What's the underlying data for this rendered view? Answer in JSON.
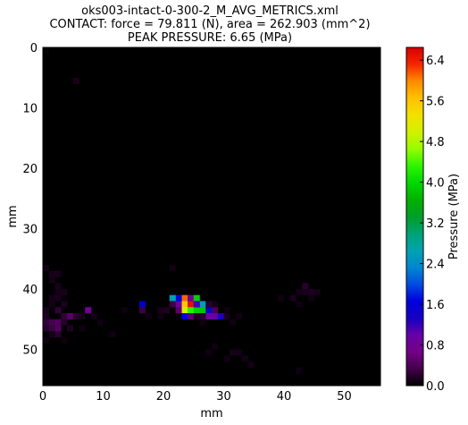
{
  "chart_data": {
    "type": "heatmap",
    "title_lines": [
      "oks003-intact-0-300-2_M_AVG_METRICS.xml",
      "CONTACT: force = 79.811 (N), area = 262.903 (mm^2)",
      "PEAK PRESSURE: 6.65 (MPa)"
    ],
    "xlabel": "mm",
    "ylabel": "mm",
    "colorbar_label": "Pressure (MPa)",
    "xlim": [
      0,
      56
    ],
    "ylim": [
      56,
      0
    ],
    "xticks": [
      "0",
      "10",
      "20",
      "30",
      "40",
      "50"
    ],
    "yticks": [
      "0",
      "10",
      "20",
      "30",
      "40",
      "50"
    ],
    "colorbar_ticks": [
      "0.0",
      "0.8",
      "1.6",
      "2.4",
      "3.2",
      "4.0",
      "4.8",
      "5.6",
      "6.4"
    ],
    "colorbar_range": [
      0,
      6.65
    ],
    "colormap": "nipy_spectral",
    "background_color": "#000000",
    "cells": [
      {
        "x": 23,
        "y": 41,
        "v": 6.1
      },
      {
        "x": 23,
        "y": 42,
        "v": 5.6
      },
      {
        "x": 23,
        "y": 43,
        "v": 5.0
      },
      {
        "x": 24,
        "y": 42,
        "v": 6.5
      },
      {
        "x": 24,
        "y": 41,
        "v": 0.8
      },
      {
        "x": 24,
        "y": 43,
        "v": 4.3
      },
      {
        "x": 25,
        "y": 41,
        "v": 3.9
      },
      {
        "x": 25,
        "y": 43,
        "v": 3.9
      },
      {
        "x": 26,
        "y": 42,
        "v": 2.6
      },
      {
        "x": 26,
        "y": 43,
        "v": 3.8
      },
      {
        "x": 22,
        "y": 42,
        "v": 0.9
      },
      {
        "x": 22,
        "y": 41,
        "v": 1.6
      },
      {
        "x": 21,
        "y": 41,
        "v": 2.6
      },
      {
        "x": 22,
        "y": 43,
        "v": 0.5
      },
      {
        "x": 23,
        "y": 44,
        "v": 1.6
      },
      {
        "x": 24,
        "y": 44,
        "v": 0.5
      },
      {
        "x": 25,
        "y": 42,
        "v": 1.2
      },
      {
        "x": 27,
        "y": 43,
        "v": 1.5
      },
      {
        "x": 27,
        "y": 44,
        "v": 0.9
      },
      {
        "x": 28,
        "y": 44,
        "v": 1.0
      },
      {
        "x": 29,
        "y": 44,
        "v": 1.3
      },
      {
        "x": 28,
        "y": 43,
        "v": 0.4
      },
      {
        "x": 26,
        "y": 44,
        "v": 0.2
      },
      {
        "x": 16,
        "y": 42,
        "v": 1.4
      },
      {
        "x": 16,
        "y": 43,
        "v": 0.3
      },
      {
        "x": 7,
        "y": 43,
        "v": 0.8
      },
      {
        "x": 4,
        "y": 44,
        "v": 0.5
      },
      {
        "x": 3,
        "y": 44,
        "v": 0.25
      },
      {
        "x": 2,
        "y": 43,
        "v": 0.25
      },
      {
        "x": 1,
        "y": 45,
        "v": 0.35
      },
      {
        "x": 2,
        "y": 45,
        "v": 0.4
      },
      {
        "x": 2,
        "y": 46,
        "v": 0.45
      },
      {
        "x": 1,
        "y": 46,
        "v": 0.3
      },
      {
        "x": 0,
        "y": 45,
        "v": 0.25
      },
      {
        "x": 3,
        "y": 45,
        "v": 0.2
      },
      {
        "x": 2,
        "y": 47,
        "v": 0.2
      },
      {
        "x": 0,
        "y": 46,
        "v": 0.2
      },
      {
        "x": 1,
        "y": 37,
        "v": 0.12
      },
      {
        "x": 2,
        "y": 37,
        "v": 0.12
      },
      {
        "x": 1,
        "y": 38,
        "v": 0.1
      },
      {
        "x": 2,
        "y": 39,
        "v": 0.12
      },
      {
        "x": 2,
        "y": 40,
        "v": 0.1
      },
      {
        "x": 3,
        "y": 40,
        "v": 0.12
      },
      {
        "x": 1,
        "y": 41,
        "v": 0.1
      },
      {
        "x": 2,
        "y": 41,
        "v": 0.12
      },
      {
        "x": 3,
        "y": 42,
        "v": 0.15
      },
      {
        "x": 1,
        "y": 42,
        "v": 0.1
      },
      {
        "x": 0,
        "y": 43,
        "v": 0.12
      },
      {
        "x": 0,
        "y": 36,
        "v": 0.1
      },
      {
        "x": 4,
        "y": 46,
        "v": 0.15
      },
      {
        "x": 5,
        "y": 44,
        "v": 0.2
      },
      {
        "x": 6,
        "y": 44,
        "v": 0.12
      },
      {
        "x": 1,
        "y": 47,
        "v": 0.12
      },
      {
        "x": 0,
        "y": 44,
        "v": 0.15
      },
      {
        "x": 43,
        "y": 39,
        "v": 0.2
      },
      {
        "x": 44,
        "y": 40,
        "v": 0.15
      },
      {
        "x": 43,
        "y": 40,
        "v": 0.12
      },
      {
        "x": 42,
        "y": 40,
        "v": 0.1
      },
      {
        "x": 41,
        "y": 41,
        "v": 0.12
      },
      {
        "x": 39,
        "y": 41,
        "v": 0.08
      },
      {
        "x": 44,
        "y": 41,
        "v": 0.08
      },
      {
        "x": 42,
        "y": 42,
        "v": 0.08
      },
      {
        "x": 45,
        "y": 40,
        "v": 0.1
      },
      {
        "x": 20,
        "y": 43,
        "v": 0.15
      },
      {
        "x": 19,
        "y": 43,
        "v": 0.12
      },
      {
        "x": 19,
        "y": 44,
        "v": 0.08
      },
      {
        "x": 17,
        "y": 44,
        "v": 0.08
      },
      {
        "x": 30,
        "y": 44,
        "v": 0.12
      },
      {
        "x": 31,
        "y": 45,
        "v": 0.08
      },
      {
        "x": 32,
        "y": 44,
        "v": 0.08
      },
      {
        "x": 30,
        "y": 43,
        "v": 0.08
      },
      {
        "x": 28,
        "y": 42,
        "v": 0.1
      },
      {
        "x": 27,
        "y": 42,
        "v": 0.2
      },
      {
        "x": 26,
        "y": 45,
        "v": 0.08
      },
      {
        "x": 21,
        "y": 42,
        "v": 0.3
      },
      {
        "x": 31,
        "y": 50,
        "v": 0.12
      },
      {
        "x": 32,
        "y": 50,
        "v": 0.1
      },
      {
        "x": 33,
        "y": 51,
        "v": 0.1
      },
      {
        "x": 34,
        "y": 52,
        "v": 0.1
      },
      {
        "x": 30,
        "y": 51,
        "v": 0.08
      },
      {
        "x": 27,
        "y": 50,
        "v": 0.08
      },
      {
        "x": 28,
        "y": 49,
        "v": 0.08
      },
      {
        "x": 21,
        "y": 36,
        "v": 0.1
      },
      {
        "x": 42,
        "y": 53,
        "v": 0.08
      },
      {
        "x": 5,
        "y": 5,
        "v": 0.12
      },
      {
        "x": 0,
        "y": 0,
        "v": 0.05
      },
      {
        "x": 11,
        "y": 47,
        "v": 0.08
      },
      {
        "x": 9,
        "y": 45,
        "v": 0.08
      },
      {
        "x": 8,
        "y": 44,
        "v": 0.1
      },
      {
        "x": 13,
        "y": 43,
        "v": 0.06
      },
      {
        "x": 6,
        "y": 46,
        "v": 0.08
      },
      {
        "x": 0,
        "y": 48,
        "v": 0.08
      },
      {
        "x": 3,
        "y": 48,
        "v": 0.06
      },
      {
        "x": 25,
        "y": 44,
        "v": 0.15
      }
    ]
  }
}
